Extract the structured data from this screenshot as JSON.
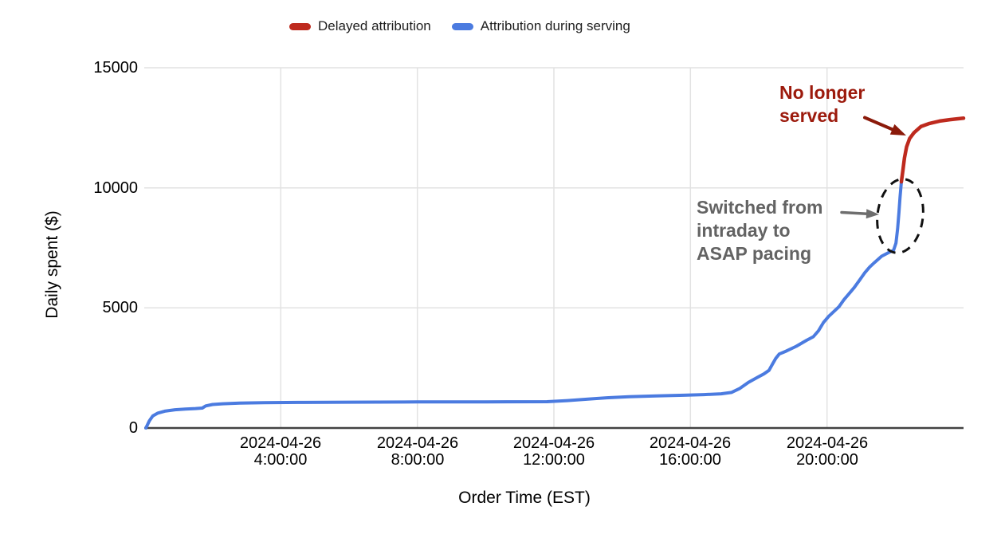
{
  "style": {
    "background": "#ffffff",
    "gridline": "#e2e2e2",
    "axis_line": "#424242",
    "tick_label_color": "#000000",
    "legend_text_color": "#1f1f1f"
  },
  "legend": {
    "position": "top",
    "items": [
      {
        "label": "Delayed attribution",
        "color": "#be2a1e"
      },
      {
        "label": "Attribution during serving",
        "color": "#4b7be0"
      }
    ]
  },
  "chart_data": {
    "type": "line",
    "title": "",
    "xlabel": "Order Time (EST)",
    "ylabel": "Daily spent ($)",
    "grid": true,
    "legend_position": "top",
    "x_axis": {
      "unit": "time of day on 2024-04-26 (EST), hours",
      "min_hour": 0,
      "max_hour": 24,
      "ticks": [
        {
          "hour": 4,
          "label": "2024-04-26\n4:00:00"
        },
        {
          "hour": 8,
          "label": "2024-04-26\n8:00:00"
        },
        {
          "hour": 12,
          "label": "2024-04-26\n12:00:00"
        },
        {
          "hour": 16,
          "label": "2024-04-26\n16:00:00"
        },
        {
          "hour": 20,
          "label": "2024-04-26\n20:00:00"
        }
      ]
    },
    "y_axis": {
      "min": 0,
      "max": 15000,
      "ticks": [
        {
          "value": 0,
          "label": "0"
        },
        {
          "value": 5000,
          "label": "5000"
        },
        {
          "value": 10000,
          "label": "10000"
        },
        {
          "value": 15000,
          "label": "15000"
        }
      ]
    },
    "series": [
      {
        "name": "Attribution during serving",
        "color": "#4b7be0",
        "width": 4,
        "points": [
          [
            0.05,
            0
          ],
          [
            0.15,
            300
          ],
          [
            0.25,
            500
          ],
          [
            0.4,
            620
          ],
          [
            0.6,
            700
          ],
          [
            0.9,
            760
          ],
          [
            1.2,
            790
          ],
          [
            1.5,
            810
          ],
          [
            1.7,
            830
          ],
          [
            1.8,
            920
          ],
          [
            2.0,
            980
          ],
          [
            2.3,
            1010
          ],
          [
            2.8,
            1040
          ],
          [
            3.5,
            1055
          ],
          [
            4.5,
            1065
          ],
          [
            6.0,
            1075
          ],
          [
            8.0,
            1085
          ],
          [
            10.0,
            1090
          ],
          [
            11.8,
            1095
          ],
          [
            12.4,
            1140
          ],
          [
            13.0,
            1200
          ],
          [
            13.6,
            1260
          ],
          [
            14.2,
            1300
          ],
          [
            15.0,
            1335
          ],
          [
            15.8,
            1365
          ],
          [
            16.4,
            1390
          ],
          [
            16.9,
            1425
          ],
          [
            17.2,
            1480
          ],
          [
            17.45,
            1650
          ],
          [
            17.7,
            1900
          ],
          [
            17.95,
            2100
          ],
          [
            18.15,
            2250
          ],
          [
            18.3,
            2400
          ],
          [
            18.4,
            2650
          ],
          [
            18.5,
            2900
          ],
          [
            18.6,
            3080
          ],
          [
            18.8,
            3200
          ],
          [
            19.1,
            3400
          ],
          [
            19.4,
            3650
          ],
          [
            19.6,
            3800
          ],
          [
            19.75,
            4050
          ],
          [
            19.9,
            4400
          ],
          [
            20.05,
            4650
          ],
          [
            20.2,
            4850
          ],
          [
            20.35,
            5050
          ],
          [
            20.5,
            5350
          ],
          [
            20.65,
            5600
          ],
          [
            20.8,
            5850
          ],
          [
            20.95,
            6150
          ],
          [
            21.1,
            6450
          ],
          [
            21.25,
            6700
          ],
          [
            21.4,
            6900
          ],
          [
            21.6,
            7150
          ],
          [
            21.8,
            7300
          ],
          [
            21.95,
            7400
          ],
          [
            22.02,
            7700
          ],
          [
            22.07,
            8300
          ],
          [
            22.11,
            9000
          ],
          [
            22.14,
            9600
          ],
          [
            22.18,
            10250
          ]
        ]
      },
      {
        "name": "Delayed attribution",
        "color": "#be2a1e",
        "width": 4.5,
        "points": [
          [
            22.18,
            10250
          ],
          [
            22.22,
            10700
          ],
          [
            22.27,
            11250
          ],
          [
            22.33,
            11700
          ],
          [
            22.42,
            12050
          ],
          [
            22.55,
            12300
          ],
          [
            22.75,
            12550
          ],
          [
            23.0,
            12680
          ],
          [
            23.3,
            12780
          ],
          [
            23.6,
            12840
          ],
          [
            24.0,
            12900
          ]
        ]
      }
    ],
    "annotations": [
      {
        "text": "No longer served",
        "display": "No longer\nserved",
        "color": "#9c1a0c",
        "arrow_color": "#8b1a0a",
        "points_to": "bend of red curve at ~22:25, ~$12,100"
      },
      {
        "text": "Switched from intraday to ASAP pacing",
        "display": "Switched from\nintraday to\nASAP pacing",
        "color": "#636363",
        "arrow_color": "#6e6e6e",
        "ellipse_color": "#111111",
        "points_to": "steep blue segment circled at ~22:00-22:10, $7,400-$10,250"
      }
    ]
  }
}
